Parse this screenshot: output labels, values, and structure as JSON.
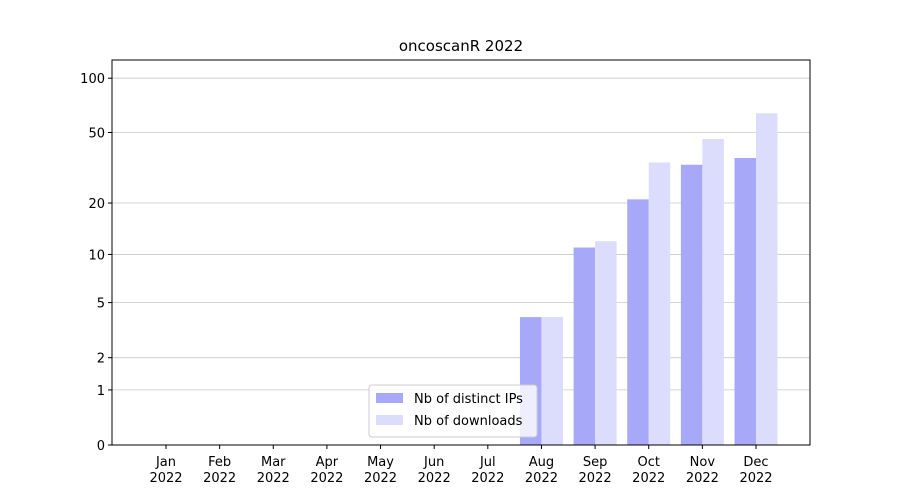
{
  "chart_data": {
    "type": "bar",
    "title": "oncoscanR 2022",
    "categories": [
      "Jan\n2022",
      "Feb\n2022",
      "Mar\n2022",
      "Apr\n2022",
      "May\n2022",
      "Jun\n2022",
      "Jul\n2022",
      "Aug\n2022",
      "Sep\n2022",
      "Oct\n2022",
      "Nov\n2022",
      "Dec\n2022"
    ],
    "series": [
      {
        "name": "Nb of distinct IPs",
        "color": "#a8a8f8",
        "values": [
          0,
          0,
          0,
          0,
          0,
          0,
          0,
          4,
          11,
          21,
          33,
          36
        ]
      },
      {
        "name": "Nb of downloads",
        "color": "#dcdcfc",
        "values": [
          0,
          0,
          0,
          0,
          0,
          0,
          0,
          4,
          12,
          34,
          46,
          64
        ]
      }
    ],
    "yscale": "log1p",
    "ylim": [
      0,
      126
    ],
    "yticks": [
      0,
      1,
      2,
      5,
      10,
      20,
      50,
      100
    ],
    "grid": true,
    "legend": "lower center"
  }
}
